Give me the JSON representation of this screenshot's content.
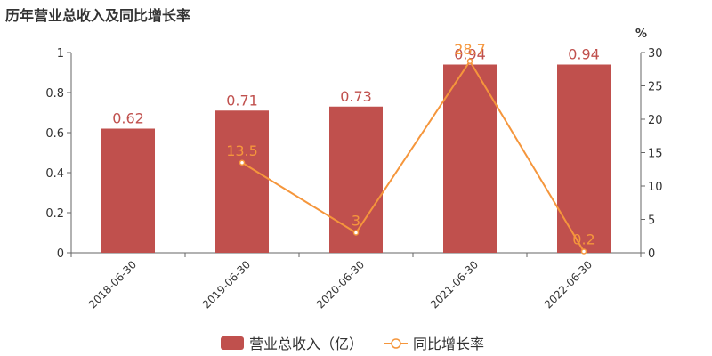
{
  "chart_data": {
    "type": "bar+line",
    "title": "历年营业总收入及同比增长率",
    "categories": [
      "2018-06-30",
      "2019-06-30",
      "2020-06-30",
      "2021-06-30",
      "2022-06-30"
    ],
    "series": [
      {
        "name": "营业总收入（亿）",
        "type": "bar",
        "axis": "left",
        "color": "#c0504d",
        "values": [
          0.62,
          0.71,
          0.73,
          0.94,
          0.94
        ],
        "labels": [
          "0.62",
          "0.71",
          "0.73",
          "0.94",
          "0.94"
        ]
      },
      {
        "name": "同比增长率",
        "type": "line",
        "axis": "right",
        "color": "#f5963c",
        "values": [
          null,
          13.5,
          3,
          28.7,
          0.2
        ],
        "labels": [
          "",
          "13.5",
          "3",
          "28.7",
          "0.2"
        ]
      }
    ],
    "left_axis": {
      "ylim": [
        0,
        1
      ],
      "ticks": [
        0,
        0.2,
        0.4,
        0.6,
        0.8,
        1
      ],
      "tick_labels": [
        "0",
        "0.2",
        "0.4",
        "0.6",
        "0.8",
        "1"
      ]
    },
    "right_axis": {
      "ylabel": "%",
      "ylim": [
        0,
        30
      ],
      "ticks": [
        0,
        5,
        10,
        15,
        20,
        25,
        30
      ],
      "tick_labels": [
        "0",
        "5",
        "10",
        "15",
        "20",
        "25",
        "30"
      ]
    },
    "legend_position": "bottom-center",
    "grid": false
  }
}
